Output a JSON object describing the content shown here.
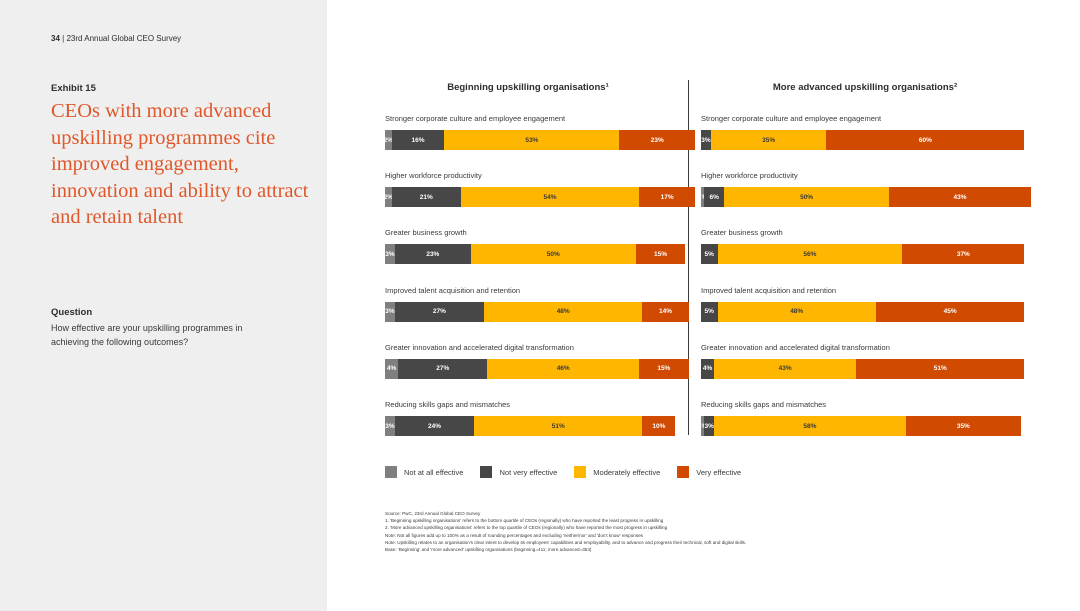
{
  "header": {
    "page_number": "34",
    "separator": "|",
    "doc_title": "23rd Annual Global CEO Survey"
  },
  "exhibit_label": "Exhibit 15",
  "headline": "CEOs with more advanced upskilling programmes cite improved engagement, innovation and ability to attract and retain talent",
  "question": {
    "label": "Question",
    "text": "How effective are your upskilling programmes in achieving the following outcomes?"
  },
  "colors": {
    "not_at_all": "#7f7f7f",
    "not_very": "#474747",
    "moderately": "#ffb600",
    "very": "#d04a02",
    "left_panel_bg": "#efefef",
    "headline": "#e0582a"
  },
  "chart_data": {
    "type": "bar",
    "orientation": "horizontal",
    "stacked": true,
    "unit": "%",
    "legend": [
      "Not at all effective",
      "Not very effective",
      "Moderately effective",
      "Very effective"
    ],
    "legend_position": "bottom",
    "panels": [
      {
        "title": "Beginning upskilling organisations¹",
        "rows": [
          {
            "label": "Stronger corporate culture and employee engagement",
            "values": [
              2,
              16,
              53,
              23
            ],
            "labels": [
              "2%",
              "16%",
              "53%",
              "23%"
            ]
          },
          {
            "label": "Higher workforce productivity",
            "values": [
              2,
              21,
              54,
              17
            ],
            "labels": [
              "2%",
              "21%",
              "54%",
              "17%"
            ]
          },
          {
            "label": "Greater business growth",
            "values": [
              3,
              23,
              50,
              15
            ],
            "labels": [
              "3%",
              "23%",
              "50%",
              "15%"
            ]
          },
          {
            "label": "Improved talent acquisition and retention",
            "values": [
              3,
              27,
              48,
              14
            ],
            "labels": [
              "3%",
              "27%",
              "48%",
              "14%"
            ]
          },
          {
            "label": "Greater innovation and accelerated digital transformation",
            "values": [
              4,
              27,
              46,
              15
            ],
            "labels": [
              "4%",
              "27%",
              "46%",
              "15%"
            ]
          },
          {
            "label": "Reducing skills gaps and mismatches",
            "values": [
              3,
              24,
              51,
              10
            ],
            "labels": [
              "3%",
              "24%",
              "51%",
              "10%"
            ]
          }
        ]
      },
      {
        "title": "More advanced upskilling organisations²",
        "rows": [
          {
            "label": "Stronger corporate culture and employee engagement",
            "values": [
              0,
              3,
              35,
              60
            ],
            "labels": [
              "",
              "3%",
              "35%",
              "60%"
            ]
          },
          {
            "label": "Higher workforce productivity",
            "values": [
              1,
              6,
              50,
              43
            ],
            "labels": [
              "1%",
              "6%",
              "50%",
              "43%"
            ]
          },
          {
            "label": "Greater business growth",
            "values": [
              0,
              5,
              56,
              37
            ],
            "labels": [
              "",
              "5%",
              "56%",
              "37%"
            ]
          },
          {
            "label": "Improved talent acquisition and retention",
            "values": [
              0,
              5,
              48,
              45
            ],
            "labels": [
              "",
              "5%",
              "48%",
              "45%"
            ]
          },
          {
            "label": "Greater innovation and accelerated digital transformation",
            "values": [
              0,
              4,
              43,
              51
            ],
            "labels": [
              "",
              "4%",
              "43%",
              "51%"
            ]
          },
          {
            "label": "Reducing skills gaps and mismatches",
            "values": [
              1,
              3,
              58,
              35
            ],
            "labels": [
              "1%",
              "3%",
              "58%",
              "35%"
            ]
          }
        ]
      }
    ]
  },
  "footnotes": [
    "Source: PwC, 23rd Annual Global CEO Survey",
    "1. 'Beginning upskilling organisations' refers to the bottom quartile of CEOs (regionally) who have reported the least progress in upskilling",
    "2. 'More advanced upskilling organisations' refers to the top quartile of CEOs (regionally) who have reported the most progress in upskilling",
    "Note: Not all figures add up to 100% as a result of rounding percentages and excluding 'neither/nor' and 'don't know' responses",
    "Note: Upskilling relates to an organisation's clear intent to develop its employees' capabilities and employability, and to advance and progress their technical, soft and digital skills.",
    "Base: 'Beginning' and 'more advanced' upskilling organisations (beginning=411; more advanced=353)"
  ]
}
